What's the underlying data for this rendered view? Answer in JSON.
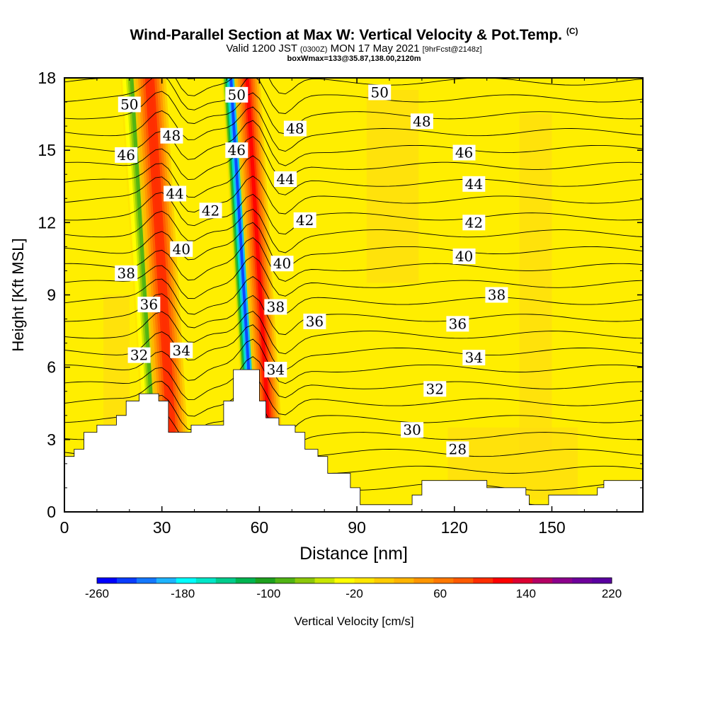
{
  "chart_data": {
    "type": "heatmap",
    "title": "Wind-Parallel Section at Max W: Vertical Velocity & Pot.Temp.",
    "title_mark": "(C)",
    "subtitle_parts": [
      "Valid 1200 JST ",
      "(0300Z)",
      " MON 17 May 2021 ",
      "[9hrFcst@2148z]"
    ],
    "subtitle2": "boxWmax=133@35.87,138.00,2120m",
    "xlabel": "Distance [nm]",
    "ylabel": "Height [Kft MSL]",
    "xlim": [
      0,
      178
    ],
    "ylim": [
      0,
      18
    ],
    "x_ticks": [
      "0",
      "30",
      "60",
      "90",
      "120",
      "150"
    ],
    "x_tick_values": [
      0,
      30,
      60,
      90,
      120,
      150
    ],
    "y_ticks": [
      "0",
      "3",
      "6",
      "9",
      "12",
      "15",
      "18"
    ],
    "y_tick_values": [
      0,
      3,
      6,
      9,
      12,
      15,
      18
    ],
    "colorbar": {
      "label": "Vertical Velocity [cm/s]",
      "tick_labels": [
        "-260",
        "-180",
        "-100",
        "-20",
        "60",
        "140",
        "220"
      ],
      "tick_values": [
        -260,
        -180,
        -100,
        -20,
        60,
        140,
        220
      ],
      "min": -260,
      "max": 220,
      "colors": [
        "#0000ff",
        "#0a3cff",
        "#1478ff",
        "#1eb4ff",
        "#00ffff",
        "#00e6c8",
        "#00cc8c",
        "#00b450",
        "#1ea01e",
        "#50b414",
        "#8cc80a",
        "#c8e600",
        "#ffff00",
        "#ffe600",
        "#ffcc00",
        "#ffb400",
        "#ff9600",
        "#ff7800",
        "#ff5a00",
        "#ff2d00",
        "#ff0000",
        "#dc0032",
        "#b40064",
        "#8c008c",
        "#6e009b",
        "#5a00a0"
      ]
    },
    "background_w": "0 to 20 cm/s (yellow) over most of the domain",
    "updraft_columns": [
      {
        "x_center": 33,
        "x_halfwidth": 5,
        "w_peak": 140
      },
      {
        "x_center": 63,
        "x_halfwidth": 4,
        "w_peak": 150
      }
    ],
    "downdraft_columns": [
      {
        "x_center": 28,
        "x_halfwidth": 4,
        "w_min": -100
      },
      {
        "x_center": 58,
        "x_halfwidth": 3,
        "w_min": -260
      }
    ],
    "theta_contours_label_unit": "C",
    "theta_contour_labels": [
      {
        "text": "50",
        "x": 20,
        "y": 16.9
      },
      {
        "text": "50",
        "x": 53,
        "y": 17.3
      },
      {
        "text": "50",
        "x": 97,
        "y": 17.4
      },
      {
        "text": "48",
        "x": 33,
        "y": 15.6
      },
      {
        "text": "48",
        "x": 71,
        "y": 15.9
      },
      {
        "text": "48",
        "x": 110,
        "y": 16.2
      },
      {
        "text": "46",
        "x": 19,
        "y": 14.8
      },
      {
        "text": "46",
        "x": 53,
        "y": 15.0
      },
      {
        "text": "46",
        "x": 123,
        "y": 14.9
      },
      {
        "text": "44",
        "x": 34,
        "y": 13.2
      },
      {
        "text": "44",
        "x": 68,
        "y": 13.8
      },
      {
        "text": "44",
        "x": 126,
        "y": 13.6
      },
      {
        "text": "42",
        "x": 45,
        "y": 12.5
      },
      {
        "text": "42",
        "x": 74,
        "y": 12.1
      },
      {
        "text": "42",
        "x": 126,
        "y": 12.0
      },
      {
        "text": "40",
        "x": 36,
        "y": 10.9
      },
      {
        "text": "40",
        "x": 67,
        "y": 10.3
      },
      {
        "text": "40",
        "x": 123,
        "y": 10.6
      },
      {
        "text": "38",
        "x": 19,
        "y": 9.9
      },
      {
        "text": "38",
        "x": 65,
        "y": 8.5
      },
      {
        "text": "38",
        "x": 133,
        "y": 9.0
      },
      {
        "text": "36",
        "x": 26,
        "y": 8.6
      },
      {
        "text": "36",
        "x": 77,
        "y": 7.9
      },
      {
        "text": "36",
        "x": 121,
        "y": 7.8
      },
      {
        "text": "34",
        "x": 36,
        "y": 6.7
      },
      {
        "text": "34",
        "x": 65,
        "y": 5.9
      },
      {
        "text": "34",
        "x": 126,
        "y": 6.4
      },
      {
        "text": "32",
        "x": 23,
        "y": 6.5
      },
      {
        "text": "32",
        "x": 114,
        "y": 5.1
      },
      {
        "text": "30",
        "x": 107,
        "y": 3.4
      },
      {
        "text": "28",
        "x": 121,
        "y": 2.6
      }
    ],
    "terrain_profile": [
      [
        0,
        2.3
      ],
      [
        3,
        2.3
      ],
      [
        3,
        2.6
      ],
      [
        6,
        2.6
      ],
      [
        6,
        3.3
      ],
      [
        10,
        3.3
      ],
      [
        10,
        3.6
      ],
      [
        16,
        3.6
      ],
      [
        16,
        4.0
      ],
      [
        19,
        4.0
      ],
      [
        19,
        4.6
      ],
      [
        23,
        4.6
      ],
      [
        23,
        4.9
      ],
      [
        29,
        4.9
      ],
      [
        29,
        4.6
      ],
      [
        32,
        4.6
      ],
      [
        32,
        3.3
      ],
      [
        39,
        3.3
      ],
      [
        39,
        3.6
      ],
      [
        49,
        3.6
      ],
      [
        49,
        4.6
      ],
      [
        52,
        4.6
      ],
      [
        52,
        5.9
      ],
      [
        60,
        5.9
      ],
      [
        60,
        4.6
      ],
      [
        62,
        4.6
      ],
      [
        62,
        3.9
      ],
      [
        66,
        3.9
      ],
      [
        66,
        3.6
      ],
      [
        71,
        3.6
      ],
      [
        71,
        3.3
      ],
      [
        74,
        3.3
      ],
      [
        74,
        2.6
      ],
      [
        78,
        2.6
      ],
      [
        78,
        2.3
      ],
      [
        81,
        2.3
      ],
      [
        81,
        1.6
      ],
      [
        88,
        1.6
      ],
      [
        88,
        1.0
      ],
      [
        91,
        1.0
      ],
      [
        91,
        0.3
      ],
      [
        107,
        0.3
      ],
      [
        107,
        0.7
      ],
      [
        110,
        0.7
      ],
      [
        110,
        1.3
      ],
      [
        130,
        1.3
      ],
      [
        130,
        1.0
      ],
      [
        142,
        1.0
      ],
      [
        142,
        0.7
      ],
      [
        143,
        0.7
      ],
      [
        143,
        0.3
      ],
      [
        149,
        0.3
      ],
      [
        149,
        0.7
      ],
      [
        164,
        0.7
      ],
      [
        164,
        1.0
      ],
      [
        166,
        1.0
      ],
      [
        166,
        1.3
      ],
      [
        178,
        1.3
      ]
    ]
  }
}
